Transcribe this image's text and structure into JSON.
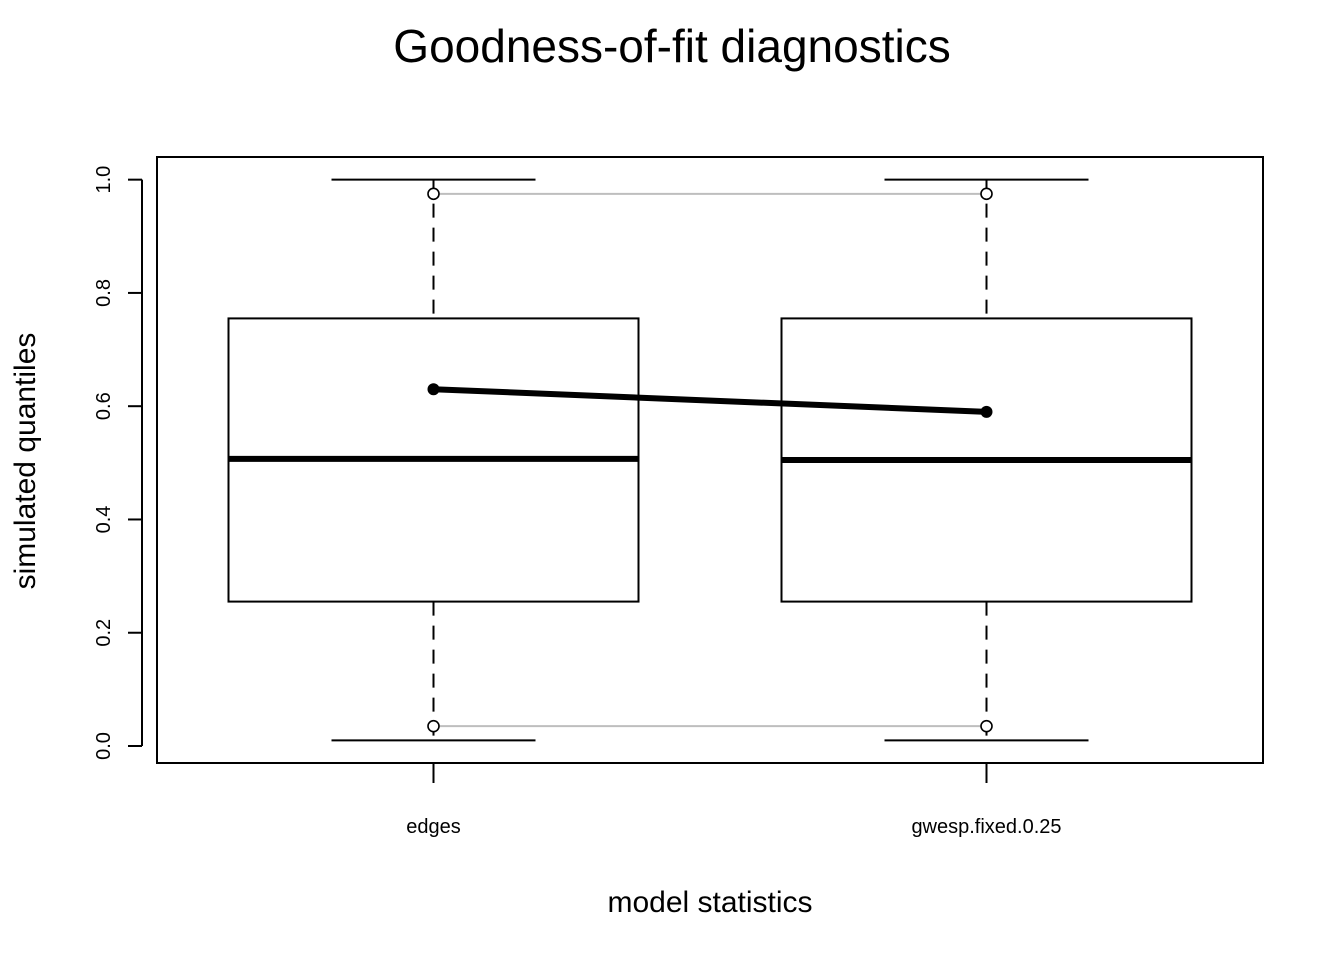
{
  "chart_data": {
    "type": "box",
    "title": "Goodness-of-fit diagnostics",
    "xlabel": "model statistics",
    "ylabel": "simulated quantiles",
    "categories": [
      "edges",
      "gwesp.fixed.0.25"
    ],
    "ylim": [
      -0.03,
      1.04
    ],
    "yticks": [
      0.0,
      0.2,
      0.4,
      0.6,
      0.8,
      1.0
    ],
    "ytick_labels": [
      "0.0",
      "0.2",
      "0.4",
      "0.6",
      "0.8",
      "1.0"
    ],
    "boxes": [
      {
        "category": "edges",
        "min": 0.01,
        "q1": 0.255,
        "median": 0.507,
        "q3": 0.755,
        "max": 1.0
      },
      {
        "category": "gwesp.fixed.0.25",
        "min": 0.01,
        "q1": 0.255,
        "median": 0.505,
        "q3": 0.755,
        "max": 1.0
      }
    ],
    "observed": {
      "values": [
        0.63,
        0.59
      ],
      "color": "#000000"
    },
    "interval_lines": {
      "upper": [
        0.975,
        0.975
      ],
      "lower": [
        0.035,
        0.035
      ],
      "color": "#bebebe"
    },
    "grid": false,
    "legend": false
  }
}
